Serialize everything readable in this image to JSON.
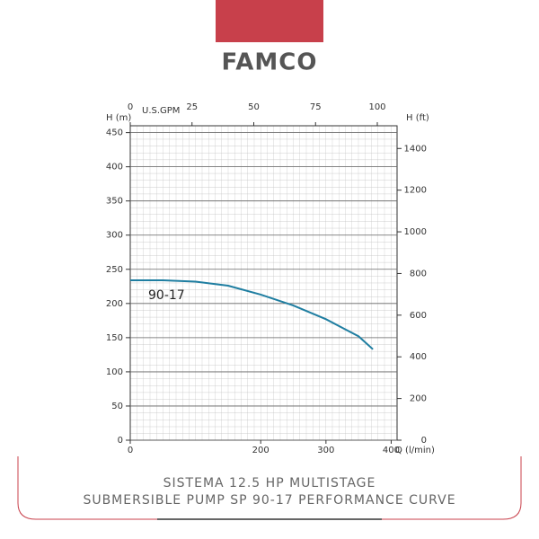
{
  "brand": "FAMCO",
  "caption": [
    "SISTEMA 12.5 HP MULTISTAGE",
    "SUBMERSIBLE PUMP SP 90-17 PERFORMANCE CURVE"
  ],
  "chart_data": {
    "type": "line",
    "xlabel": "Q (l/min)",
    "x2label": "U.S.GPM",
    "ylabel": "H (m)",
    "y2label": "H (ft)",
    "x": [
      0,
      50,
      100,
      150,
      200,
      250,
      300,
      350,
      372
    ],
    "series": [
      {
        "name": "90-17",
        "color": "#1f7ea1",
        "values": [
          234,
          234,
          232,
          226,
          213,
          197,
          177,
          152,
          133
        ]
      }
    ],
    "xlim": [
      0,
      409
    ],
    "xticks": [
      0,
      200,
      300,
      400
    ],
    "x2lim": [
      0,
      108
    ],
    "x2ticks": [
      0,
      25,
      50,
      75,
      100
    ],
    "ylim": [
      0,
      460
    ],
    "yticks": [
      0,
      50,
      100,
      150,
      200,
      250,
      300,
      350,
      400,
      450
    ],
    "y2lim": [
      0,
      1509
    ],
    "y2ticks": [
      0,
      200,
      400,
      600,
      800,
      1000,
      1200,
      1400
    ],
    "grid": true
  }
}
